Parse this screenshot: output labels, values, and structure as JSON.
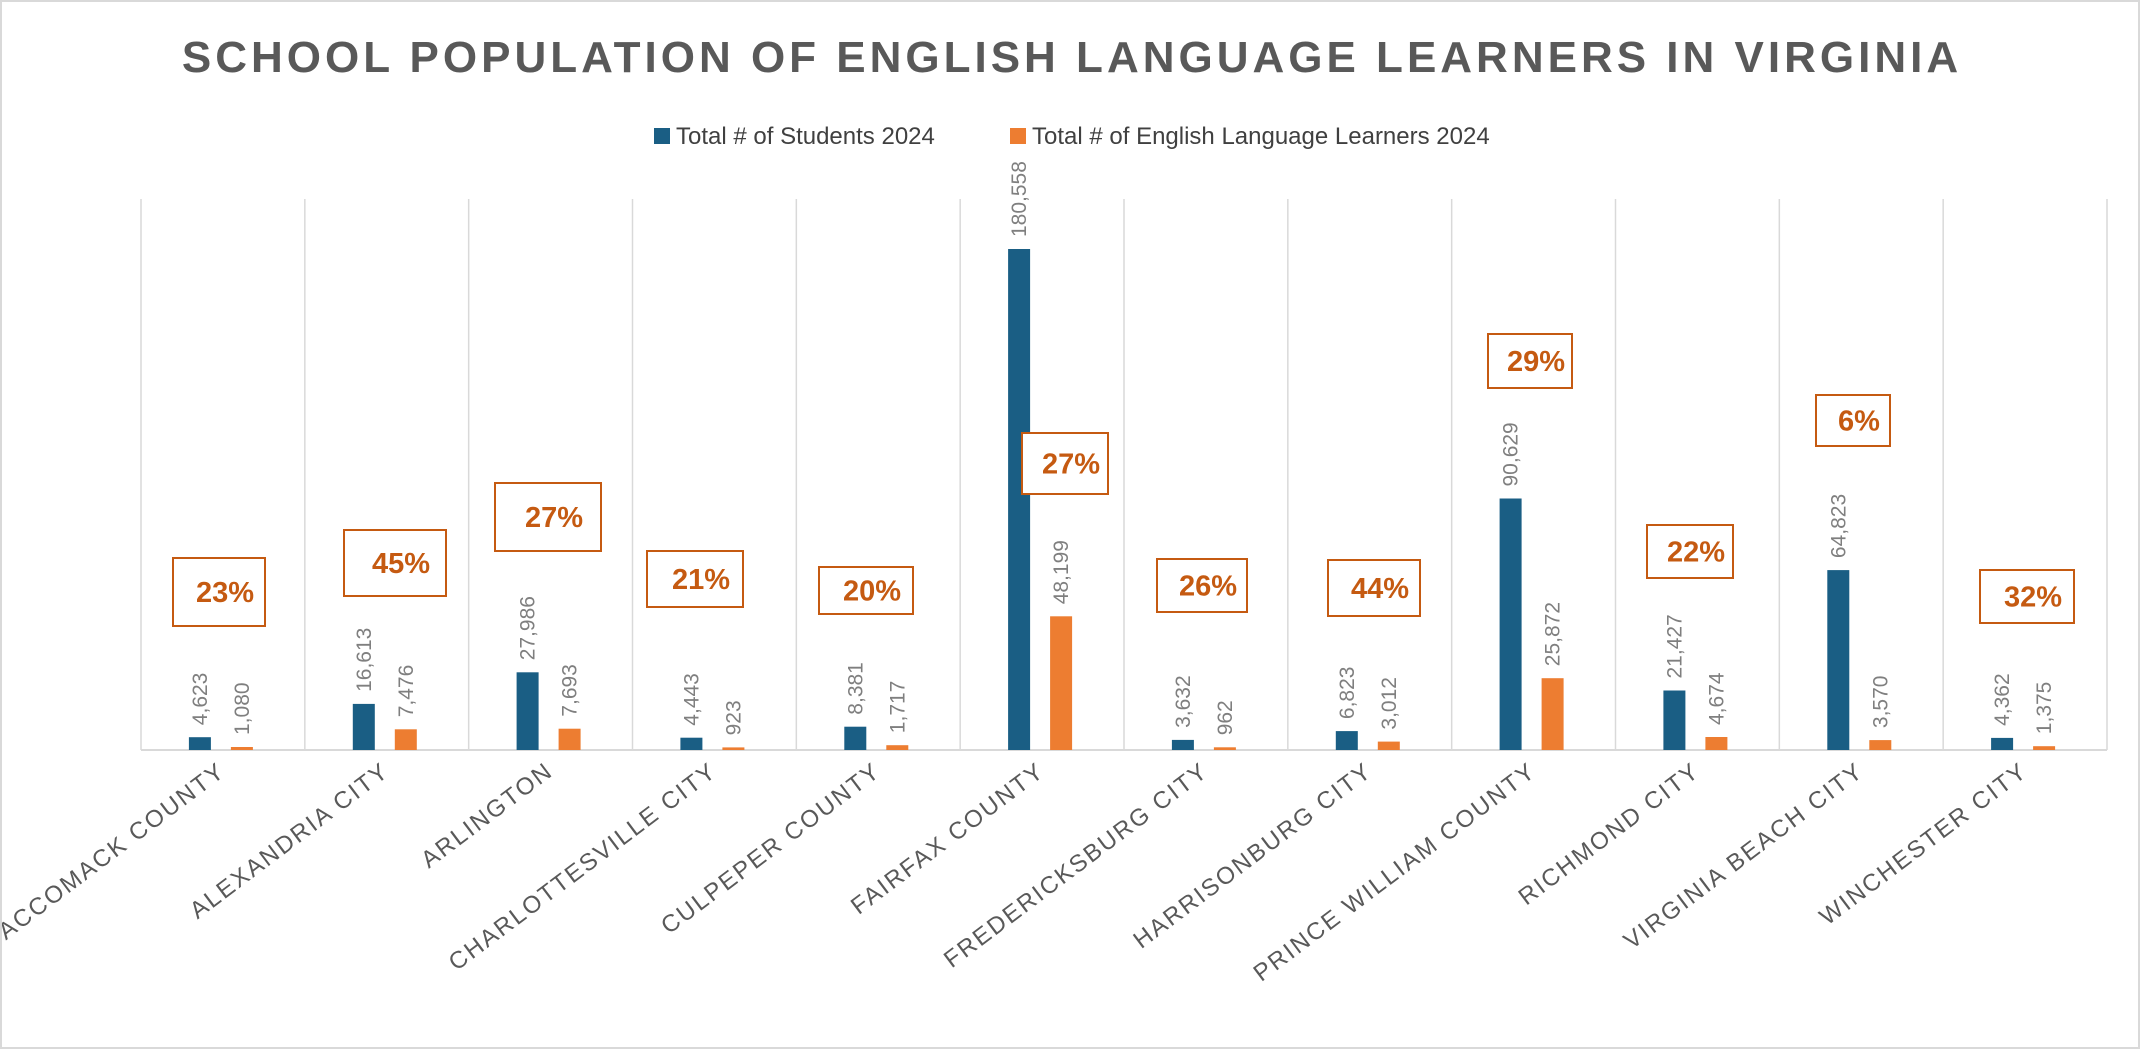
{
  "chart_data": {
    "type": "bar",
    "title": "SCHOOL POPULATION OF ENGLISH LANGUAGE LEARNERS IN VIRGINIA",
    "categories": [
      "ACCOMACK COUNTY",
      "ALEXANDRIA CITY",
      "ARLINGTON",
      "CHARLOTTESVILLE CITY",
      "CULPEPER COUNTY",
      "FAIRFAX COUNTY",
      "FREDERICKSBURG CITY",
      "HARRISONBURG CITY",
      "PRINCE WILLIAM COUNTY",
      "RICHMOND CITY",
      "VIRGINIA BEACH CITY",
      "WINCHESTER CITY"
    ],
    "series": [
      {
        "name": "Total # of Students 2024",
        "color": "#1a5e84",
        "values": [
          4623,
          16613,
          27986,
          4443,
          8381,
          180558,
          3632,
          6823,
          90629,
          21427,
          64823,
          4362
        ],
        "labels": [
          "4,623",
          "16,613",
          "27,986",
          "4,443",
          "8,381",
          "180,558",
          "3,632",
          "6,823",
          "90,629",
          "21,427",
          "64,823",
          "4,362"
        ]
      },
      {
        "name": "Total # of English Language Learners 2024",
        "color": "#ed7d31",
        "values": [
          1080,
          7476,
          7693,
          923,
          1717,
          48199,
          962,
          3012,
          25872,
          4674,
          3570,
          1375
        ],
        "labels": [
          "1,080",
          "7,476",
          "7,693",
          "923",
          "1,717",
          "48,199",
          "962",
          "3,012",
          "25,872",
          "4,674",
          "3,570",
          "1,375"
        ]
      }
    ],
    "percent_callouts": [
      "23%",
      "45%",
      "27%",
      "21%",
      "20%",
      "27%",
      "26%",
      "44%",
      "29%",
      "22%",
      "6%",
      "32%"
    ],
    "ylim": [
      0,
      200000
    ],
    "grid": "vertical category separators",
    "legend_position": "top-center",
    "xlabel": "",
    "ylabel": ""
  }
}
